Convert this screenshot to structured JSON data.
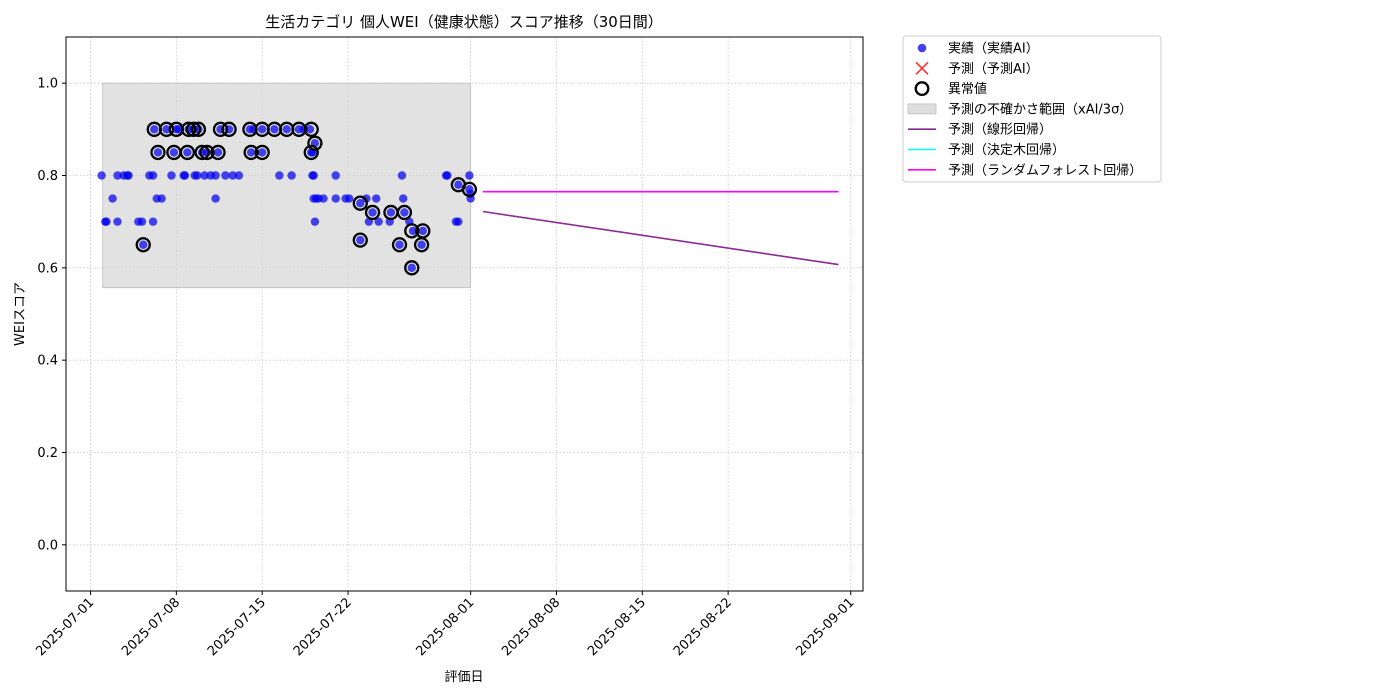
{
  "chart_data": {
    "type": "scatter",
    "title": "生活カテゴリ 個人WEI（健康状態）スコア推移（30日間）",
    "xlabel": "評価日",
    "ylabel": "WEIスコア",
    "x_range": [
      "2025-06-29",
      "2025-09-02"
    ],
    "ylim": [
      -0.1,
      1.1
    ],
    "x_ticks": [
      "2025-07-01",
      "2025-07-08",
      "2025-07-15",
      "2025-07-22",
      "2025-08-01",
      "2025-08-08",
      "2025-08-15",
      "2025-08-22",
      "2025-09-01"
    ],
    "y_ticks": [
      "0.0",
      "0.2",
      "0.4",
      "0.6",
      "0.8",
      "1.0"
    ],
    "grid": true,
    "legend_position": "outside-upper-right",
    "colors": {
      "actual": "#0000ee",
      "anomaly_edge": "#000000",
      "uncertainty": "#d3d3d3",
      "linear": "#8b2a96",
      "tree": "#00ffff",
      "forest": "#ff00ff",
      "forecast_marker": "#ff3333"
    },
    "legend": [
      {
        "label": "実績（実績AI）",
        "marker": "dot"
      },
      {
        "label": "予測（予測AI）",
        "marker": "cross"
      },
      {
        "label": "異常値",
        "marker": "ring"
      },
      {
        "label": "予測の不確かさ範囲（xAI/3σ）",
        "marker": "band"
      },
      {
        "label": "予測（線形回帰）",
        "marker": "line-linear"
      },
      {
        "label": "予測（決定木回帰）",
        "marker": "line-tree"
      },
      {
        "label": "予測（ランダムフォレスト回帰）",
        "marker": "line-forest"
      }
    ],
    "uncertainty_band": {
      "x": [
        "2025-07-02",
        "2025-08-01"
      ],
      "y": [
        0.557,
        1.0
      ]
    },
    "forecast_lines": [
      {
        "name": "予測（線形回帰）",
        "color_key": "linear",
        "x": [
          "2025-08-02",
          "2025-08-31"
        ],
        "y": [
          0.722,
          0.607
        ]
      },
      {
        "name": "予測（決定木回帰）",
        "color_key": "tree",
        "x": [
          "2025-08-02",
          "2025-08-31"
        ],
        "y": [
          0.765,
          0.765
        ]
      },
      {
        "name": "予測（ランダムフォレスト回帰）",
        "color_key": "forest",
        "x": [
          "2025-08-02",
          "2025-08-31"
        ],
        "y": [
          0.765,
          0.765
        ]
      }
    ],
    "actual_points": [
      {
        "x": "2025-07-01.9",
        "y": 0.8
      },
      {
        "x": "2025-07-02.2",
        "y": 0.7
      },
      {
        "x": "2025-07-02.3",
        "y": 0.7
      },
      {
        "x": "2025-07-02.8",
        "y": 0.75
      },
      {
        "x": "2025-07-03.2",
        "y": 0.8
      },
      {
        "x": "2025-07-03.2",
        "y": 0.7
      },
      {
        "x": "2025-07-03.7",
        "y": 0.8
      },
      {
        "x": "2025-07-04.0",
        "y": 0.8
      },
      {
        "x": "2025-07-04.1",
        "y": 0.8
      },
      {
        "x": "2025-07-04.9",
        "y": 0.7
      },
      {
        "x": "2025-07-05.2",
        "y": 0.7
      },
      {
        "x": "2025-07-05.3",
        "y": 0.65
      },
      {
        "x": "2025-07-05.8",
        "y": 0.8
      },
      {
        "x": "2025-07-06.1",
        "y": 0.8
      },
      {
        "x": "2025-07-06.1",
        "y": 0.7
      },
      {
        "x": "2025-07-06.2",
        "y": 0.9
      },
      {
        "x": "2025-07-06.4",
        "y": 0.75
      },
      {
        "x": "2025-07-06.5",
        "y": 0.85
      },
      {
        "x": "2025-07-06.8",
        "y": 0.75
      },
      {
        "x": "2025-07-07.2",
        "y": 0.9
      },
      {
        "x": "2025-07-07.6",
        "y": 0.8
      },
      {
        "x": "2025-07-07.8",
        "y": 0.85
      },
      {
        "x": "2025-07-08.0",
        "y": 0.9
      },
      {
        "x": "2025-07-08.2",
        "y": 0.9
      },
      {
        "x": "2025-07-08.6",
        "y": 0.8
      },
      {
        "x": "2025-07-08.7",
        "y": 0.8
      },
      {
        "x": "2025-07-08.9",
        "y": 0.85
      },
      {
        "x": "2025-07-09.0",
        "y": 0.9
      },
      {
        "x": "2025-07-09.4",
        "y": 0.9
      },
      {
        "x": "2025-07-09.5",
        "y": 0.8
      },
      {
        "x": "2025-07-09.7",
        "y": 0.8
      },
      {
        "x": "2025-07-09.8",
        "y": 0.9
      },
      {
        "x": "2025-07-10.1",
        "y": 0.85
      },
      {
        "x": "2025-07-10.3",
        "y": 0.8
      },
      {
        "x": "2025-07-10.5",
        "y": 0.85
      },
      {
        "x": "2025-07-10.8",
        "y": 0.8
      },
      {
        "x": "2025-07-11.2",
        "y": 0.8
      },
      {
        "x": "2025-07-11.2",
        "y": 0.75
      },
      {
        "x": "2025-07-11.4",
        "y": 0.85
      },
      {
        "x": "2025-07-11.6",
        "y": 0.9
      },
      {
        "x": "2025-07-12.0",
        "y": 0.8
      },
      {
        "x": "2025-07-12.3",
        "y": 0.9
      },
      {
        "x": "2025-07-12.6",
        "y": 0.8
      },
      {
        "x": "2025-07-13.1",
        "y": 0.8
      },
      {
        "x": "2025-07-14.0",
        "y": 0.9
      },
      {
        "x": "2025-07-14.1",
        "y": 0.85
      },
      {
        "x": "2025-07-14.3",
        "y": 0.9
      },
      {
        "x": "2025-07-15.0",
        "y": 0.9
      },
      {
        "x": "2025-07-15.0",
        "y": 0.85
      },
      {
        "x": "2025-07-16.0",
        "y": 0.9
      },
      {
        "x": "2025-07-16.4",
        "y": 0.8
      },
      {
        "x": "2025-07-17.0",
        "y": 0.9
      },
      {
        "x": "2025-07-17.4",
        "y": 0.8
      },
      {
        "x": "2025-07-18.0",
        "y": 0.9
      },
      {
        "x": "2025-07-18.4",
        "y": 0.9
      },
      {
        "x": "2025-07-18.9",
        "y": 0.9
      },
      {
        "x": "2025-07-19.0",
        "y": 0.85
      },
      {
        "x": "2025-07-19.1",
        "y": 0.85
      },
      {
        "x": "2025-07-19.1",
        "y": 0.8
      },
      {
        "x": "2025-07-19.2",
        "y": 0.8
      },
      {
        "x": "2025-07-19.2",
        "y": 0.75
      },
      {
        "x": "2025-07-19.3",
        "y": 0.87
      },
      {
        "x": "2025-07-19.3",
        "y": 0.7
      },
      {
        "x": "2025-07-19.4",
        "y": 0.75
      },
      {
        "x": "2025-07-19.6",
        "y": 0.75
      },
      {
        "x": "2025-07-20.0",
        "y": 0.75
      },
      {
        "x": "2025-07-21.0",
        "y": 0.8
      },
      {
        "x": "2025-07-21.0",
        "y": 0.75
      },
      {
        "x": "2025-07-21.8",
        "y": 0.75
      },
      {
        "x": "2025-07-22.1",
        "y": 0.75
      },
      {
        "x": "2025-07-23.0",
        "y": 0.74
      },
      {
        "x": "2025-07-23.0",
        "y": 0.66
      },
      {
        "x": "2025-07-23.5",
        "y": 0.75
      },
      {
        "x": "2025-07-23.7",
        "y": 0.7
      },
      {
        "x": "2025-07-24.0",
        "y": 0.72
      },
      {
        "x": "2025-07-24.3",
        "y": 0.75
      },
      {
        "x": "2025-07-24.5",
        "y": 0.7
      },
      {
        "x": "2025-07-25.4",
        "y": 0.7
      },
      {
        "x": "2025-07-25.5",
        "y": 0.72
      },
      {
        "x": "2025-07-26.2",
        "y": 0.65
      },
      {
        "x": "2025-07-26.4",
        "y": 0.8
      },
      {
        "x": "2025-07-26.5",
        "y": 0.75
      },
      {
        "x": "2025-07-26.6",
        "y": 0.72
      },
      {
        "x": "2025-07-27.0",
        "y": 0.7
      },
      {
        "x": "2025-07-27.2",
        "y": 0.6
      },
      {
        "x": "2025-07-27.3",
        "y": 0.68
      },
      {
        "x": "2025-07-28.0",
        "y": 0.65
      },
      {
        "x": "2025-07-28.1",
        "y": 0.68
      },
      {
        "x": "2025-07-30.0",
        "y": 0.8
      },
      {
        "x": "2025-07-30.1",
        "y": 0.8
      },
      {
        "x": "2025-07-30.8",
        "y": 0.7
      },
      {
        "x": "2025-07-31.0",
        "y": 0.7
      },
      {
        "x": "2025-07-31.0",
        "y": 0.78
      },
      {
        "x": "2025-07-31.9",
        "y": 0.8
      },
      {
        "x": "2025-07-31.9",
        "y": 0.77
      },
      {
        "x": "2025-08-01.0",
        "y": 0.76
      },
      {
        "x": "2025-08-01.0",
        "y": 0.75
      }
    ],
    "anomaly_points": [
      {
        "x": "2025-07-05.3",
        "y": 0.65
      },
      {
        "x": "2025-07-06.2",
        "y": 0.9
      },
      {
        "x": "2025-07-06.5",
        "y": 0.85
      },
      {
        "x": "2025-07-07.2",
        "y": 0.9
      },
      {
        "x": "2025-07-07.8",
        "y": 0.85
      },
      {
        "x": "2025-07-08.0",
        "y": 0.9
      },
      {
        "x": "2025-07-08.9",
        "y": 0.85
      },
      {
        "x": "2025-07-09.0",
        "y": 0.9
      },
      {
        "x": "2025-07-09.4",
        "y": 0.9
      },
      {
        "x": "2025-07-09.8",
        "y": 0.9
      },
      {
        "x": "2025-07-10.1",
        "y": 0.85
      },
      {
        "x": "2025-07-10.5",
        "y": 0.85
      },
      {
        "x": "2025-07-11.4",
        "y": 0.85
      },
      {
        "x": "2025-07-11.6",
        "y": 0.9
      },
      {
        "x": "2025-07-12.3",
        "y": 0.9
      },
      {
        "x": "2025-07-14.0",
        "y": 0.9
      },
      {
        "x": "2025-07-14.1",
        "y": 0.85
      },
      {
        "x": "2025-07-15.0",
        "y": 0.9
      },
      {
        "x": "2025-07-15.0",
        "y": 0.85
      },
      {
        "x": "2025-07-16.0",
        "y": 0.9
      },
      {
        "x": "2025-07-17.0",
        "y": 0.9
      },
      {
        "x": "2025-07-18.0",
        "y": 0.9
      },
      {
        "x": "2025-07-19.0",
        "y": 0.9
      },
      {
        "x": "2025-07-19.0",
        "y": 0.85
      },
      {
        "x": "2025-07-19.3",
        "y": 0.87
      },
      {
        "x": "2025-07-23.0",
        "y": 0.74
      },
      {
        "x": "2025-07-23.0",
        "y": 0.66
      },
      {
        "x": "2025-07-24.0",
        "y": 0.72
      },
      {
        "x": "2025-07-25.5",
        "y": 0.72
      },
      {
        "x": "2025-07-26.2",
        "y": 0.65
      },
      {
        "x": "2025-07-26.6",
        "y": 0.72
      },
      {
        "x": "2025-07-27.2",
        "y": 0.68
      },
      {
        "x": "2025-07-27.2",
        "y": 0.6
      },
      {
        "x": "2025-07-28.0",
        "y": 0.65
      },
      {
        "x": "2025-07-28.1",
        "y": 0.68
      },
      {
        "x": "2025-07-31.0",
        "y": 0.78
      },
      {
        "x": "2025-07-31.9",
        "y": 0.77
      }
    ]
  }
}
